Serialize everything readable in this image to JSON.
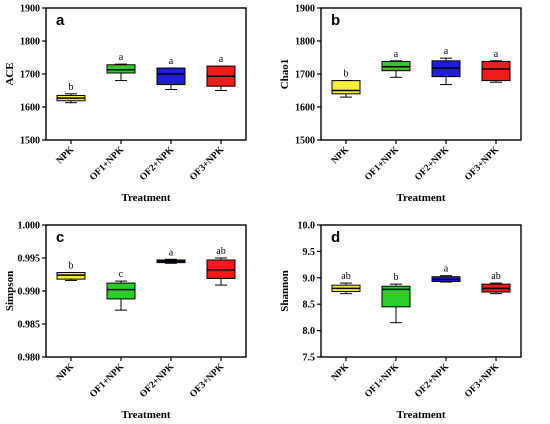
{
  "chart_data": [
    {
      "type": "box",
      "panel": "a",
      "ylabel": "ACE",
      "xlabel": "Treatment",
      "ylim": [
        1500,
        1900
      ],
      "yticks": [
        "1500",
        "1600",
        "1700",
        "1800",
        "1900"
      ],
      "categories": [
        "NPK",
        "OF1+NPK",
        "OF2+NPK",
        "OF3+NPK"
      ],
      "colors": [
        "#f5ee3a",
        "#2dcc2d",
        "#1f1fd6",
        "#ee1c1c"
      ],
      "boxes": [
        {
          "min": 1613,
          "q1": 1619,
          "median": 1627,
          "q3": 1635,
          "max": 1640
        },
        {
          "min": 1680,
          "q1": 1703,
          "median": 1713,
          "q3": 1728,
          "max": 1730
        },
        {
          "min": 1653,
          "q1": 1668,
          "median": 1700,
          "q3": 1718,
          "max": 1718
        },
        {
          "min": 1650,
          "q1": 1663,
          "median": 1693,
          "q3": 1724,
          "max": 1724
        }
      ],
      "significance": [
        "b",
        "a",
        "a",
        "a"
      ]
    },
    {
      "type": "box",
      "panel": "b",
      "ylabel": "Chao1",
      "xlabel": "Treatment",
      "ylim": [
        1500,
        1900
      ],
      "yticks": [
        "1500",
        "1600",
        "1700",
        "1800",
        "1900"
      ],
      "categories": [
        "NPK",
        "OF1+NPK",
        "OF2+NPK",
        "OF3+NPK"
      ],
      "colors": [
        "#f5ee3a",
        "#2dcc2d",
        "#1f1fd6",
        "#ee1c1c"
      ],
      "boxes": [
        {
          "min": 1630,
          "q1": 1640,
          "median": 1650,
          "q3": 1680,
          "max": 1680
        },
        {
          "min": 1690,
          "q1": 1710,
          "median": 1722,
          "q3": 1738,
          "max": 1740
        },
        {
          "min": 1668,
          "q1": 1692,
          "median": 1718,
          "q3": 1740,
          "max": 1748
        },
        {
          "min": 1675,
          "q1": 1680,
          "median": 1715,
          "q3": 1738,
          "max": 1740
        }
      ],
      "significance": [
        "b",
        "a",
        "a",
        "a"
      ]
    },
    {
      "type": "box",
      "panel": "c",
      "ylabel": "Simpson",
      "xlabel": "Treatment",
      "ylim": [
        0.98,
        1.0
      ],
      "yticks": [
        "0.980",
        "0.985",
        "0.990",
        "0.995",
        "1.000"
      ],
      "categories": [
        "NPK",
        "OF1+NPK",
        "OF2+NPK",
        "OF3+NPK"
      ],
      "colors": [
        "#f5ee3a",
        "#2dcc2d",
        "#1f1fd6",
        "#ee1c1c"
      ],
      "boxes": [
        {
          "min": 0.9916,
          "q1": 0.9918,
          "median": 0.9924,
          "q3": 0.9928,
          "max": 0.9928
        },
        {
          "min": 0.9871,
          "q1": 0.9888,
          "median": 0.9902,
          "q3": 0.9912,
          "max": 0.9915
        },
        {
          "min": 0.9942,
          "q1": 0.9943,
          "median": 0.9945,
          "q3": 0.9947,
          "max": 0.9948
        },
        {
          "min": 0.9909,
          "q1": 0.9919,
          "median": 0.9932,
          "q3": 0.9947,
          "max": 0.995
        }
      ],
      "significance": [
        "b",
        "c",
        "a",
        "ab"
      ]
    },
    {
      "type": "box",
      "panel": "d",
      "ylabel": "Shannon",
      "xlabel": "Treatment",
      "ylim": [
        7.5,
        10.0
      ],
      "yticks": [
        "7.5",
        "8.0",
        "8.5",
        "9.0",
        "9.5",
        "10.0"
      ],
      "categories": [
        "NPK",
        "OF1+NPK",
        "OF2+NPK",
        "OF3+NPK"
      ],
      "colors": [
        "#f5ee3a",
        "#2dcc2d",
        "#1f1fd6",
        "#ee1c1c"
      ],
      "boxes": [
        {
          "min": 8.7,
          "q1": 8.74,
          "median": 8.8,
          "q3": 8.86,
          "max": 8.9
        },
        {
          "min": 8.15,
          "q1": 8.45,
          "median": 8.78,
          "q3": 8.84,
          "max": 8.88
        },
        {
          "min": 8.92,
          "q1": 8.93,
          "median": 8.97,
          "q3": 9.02,
          "max": 9.04
        },
        {
          "min": 8.7,
          "q1": 8.73,
          "median": 8.8,
          "q3": 8.88,
          "max": 8.9
        }
      ],
      "significance": [
        "ab",
        "b",
        "a",
        "ab"
      ]
    }
  ]
}
